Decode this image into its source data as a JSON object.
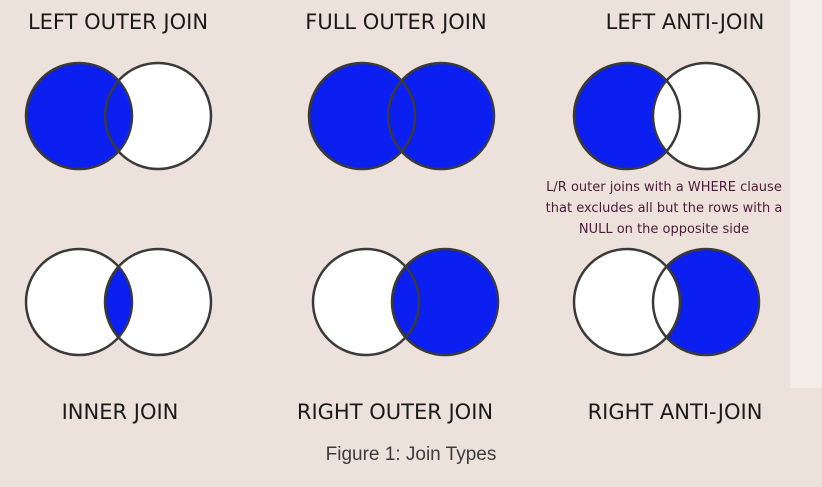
{
  "colors": {
    "background": "#ede2db",
    "fill": "#0a1ff0",
    "empty": "#ffffff",
    "stroke": "#3a3a3a"
  },
  "diagrams": [
    {
      "label": "LEFT OUTER JOIN",
      "shade": "left+overlap"
    },
    {
      "label": "FULL OUTER JOIN",
      "shade": "all"
    },
    {
      "label": "LEFT ANTI-JOIN",
      "shade": "left-only"
    },
    {
      "label": "INNER JOIN",
      "shade": "overlap"
    },
    {
      "label": "RIGHT OUTER JOIN",
      "shade": "right+overlap"
    },
    {
      "label": "RIGHT ANTI-JOIN",
      "shade": "right-only"
    }
  ],
  "note": {
    "lines": [
      "L/R outer joins with a WHERE clause",
      "that excludes all but the rows with a",
      "NULL on the opposite side"
    ]
  },
  "caption": "Figure 1: Join Types"
}
